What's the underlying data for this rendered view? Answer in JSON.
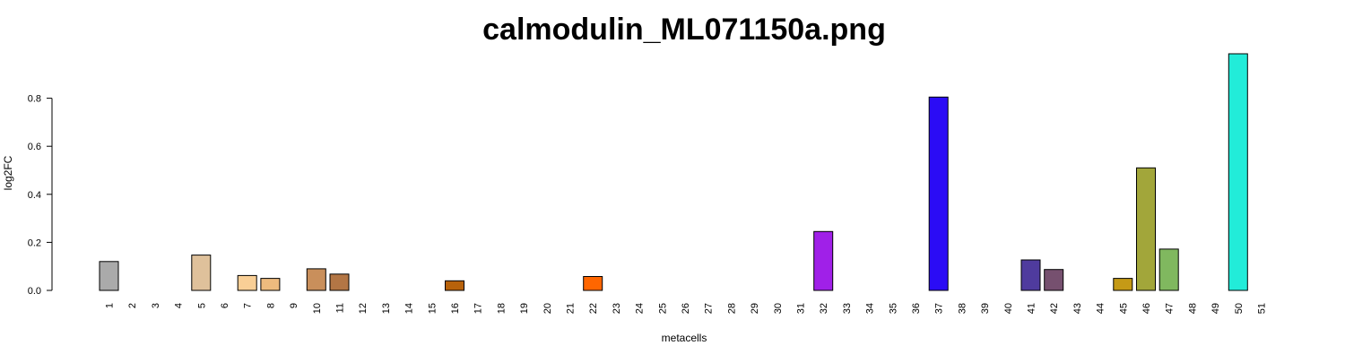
{
  "chart_data": {
    "type": "bar",
    "title": "calmodulin_ML071150a.png",
    "xlabel": "metacells",
    "ylabel": "log2FC",
    "ylim": [
      0,
      0.98
    ],
    "yticks": [
      "0.0",
      "0.2",
      "0.4",
      "0.6",
      "0.8"
    ],
    "grid": false,
    "categories": [
      "1",
      "2",
      "3",
      "4",
      "5",
      "6",
      "7",
      "8",
      "9",
      "10",
      "11",
      "12",
      "13",
      "14",
      "15",
      "16",
      "17",
      "18",
      "19",
      "20",
      "21",
      "22",
      "23",
      "24",
      "25",
      "26",
      "27",
      "28",
      "29",
      "30",
      "31",
      "32",
      "33",
      "34",
      "35",
      "36",
      "37",
      "38",
      "39",
      "40",
      "41",
      "42",
      "43",
      "44",
      "45",
      "46",
      "47",
      "48",
      "49",
      "50",
      "51"
    ],
    "values": [
      0.12,
      0,
      0,
      0,
      0.147,
      0,
      0.062,
      0.05,
      0,
      0.09,
      0.068,
      0,
      0,
      0,
      0,
      0.04,
      0,
      0,
      0,
      0,
      0,
      0.058,
      0,
      0,
      0,
      0,
      0,
      0,
      0,
      0,
      0,
      0.245,
      0,
      0,
      0,
      0,
      0.805,
      0,
      0,
      0,
      0.127,
      0.087,
      0,
      0,
      0.05,
      0.51,
      0.172,
      0,
      0,
      0.985,
      0
    ],
    "colors": [
      "#aaaaaa",
      "#aaaaaa",
      "#aaaaaa",
      "#aaaaaa",
      "#dfc19b",
      "#aaaaaa",
      "#f9cf96",
      "#edbb7e",
      "#aaaaaa",
      "#c98f5b",
      "#b37645",
      "#aaaaaa",
      "#aaaaaa",
      "#aaaaaa",
      "#aaaaaa",
      "#b7620b",
      "#aaaaaa",
      "#aaaaaa",
      "#aaaaaa",
      "#aaaaaa",
      "#aaaaaa",
      "#ff6600",
      "#aaaaaa",
      "#aaaaaa",
      "#aaaaaa",
      "#aaaaaa",
      "#aaaaaa",
      "#aaaaaa",
      "#aaaaaa",
      "#aaaaaa",
      "#aaaaaa",
      "#a020e8",
      "#aaaaaa",
      "#aaaaaa",
      "#aaaaaa",
      "#aaaaaa",
      "#2b0cf5",
      "#aaaaaa",
      "#aaaaaa",
      "#aaaaaa",
      "#4f3b9e",
      "#76506f",
      "#aaaaaa",
      "#aaaaaa",
      "#c59a16",
      "#a2a63a",
      "#80b85f",
      "#aaaaaa",
      "#aaaaaa",
      "#22ecd9",
      "#aaaaaa"
    ]
  }
}
